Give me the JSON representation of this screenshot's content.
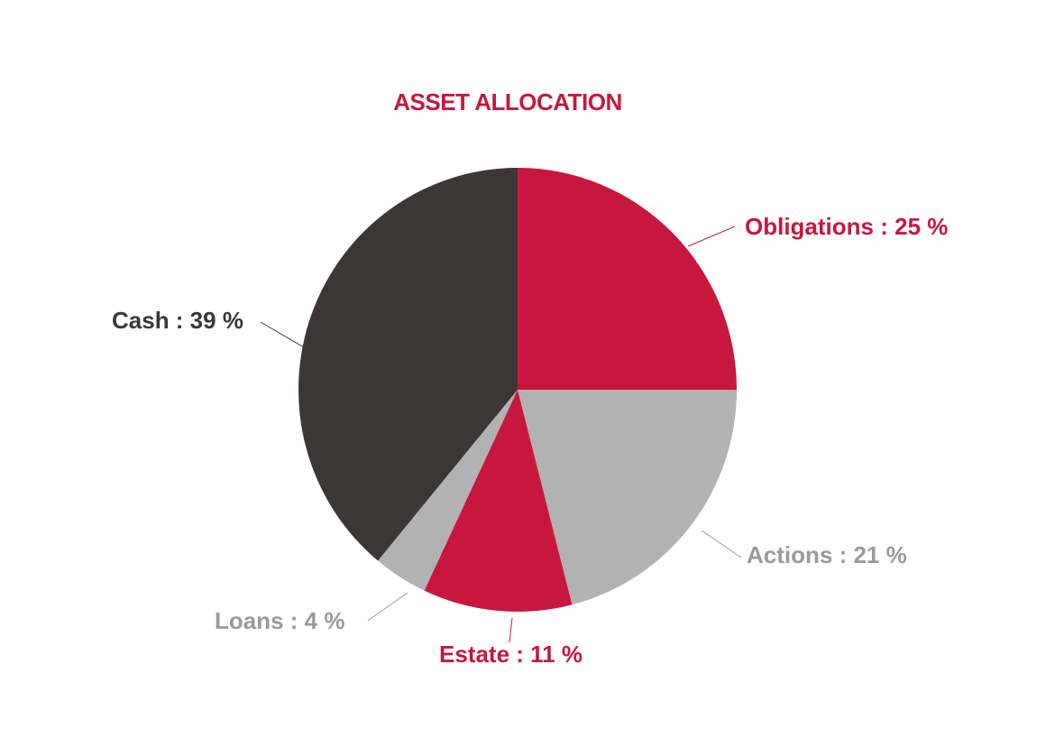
{
  "chart_data": {
    "type": "pie",
    "title": "ASSET ALLOCATION",
    "slices": [
      {
        "name": "Obligations",
        "label": "Obligations : 25 %",
        "value": 25,
        "color": "#c8173e"
      },
      {
        "name": "Actions",
        "label": "Actions : 21 %",
        "value": 21,
        "color": "#b3b2b2"
      },
      {
        "name": "Estate",
        "label": "Estate : 11 %",
        "value": 11,
        "color": "#c8173e"
      },
      {
        "name": "Loans",
        "label": "Loans : 4 %",
        "value": 4,
        "color": "#b3b2b2"
      },
      {
        "name": "Cash",
        "label": "Cash : 39 %",
        "value": 39,
        "color": "#3b3737"
      }
    ],
    "start": "12 o'clock",
    "direction": "clockwise",
    "legend": "none"
  },
  "colors": {
    "title": "#c8173e",
    "label_obligations": "#c8173e",
    "label_actions": "#9b9a9a",
    "label_estate": "#c8173e",
    "label_loans": "#9b9a9a",
    "label_cash": "#3b3737"
  }
}
